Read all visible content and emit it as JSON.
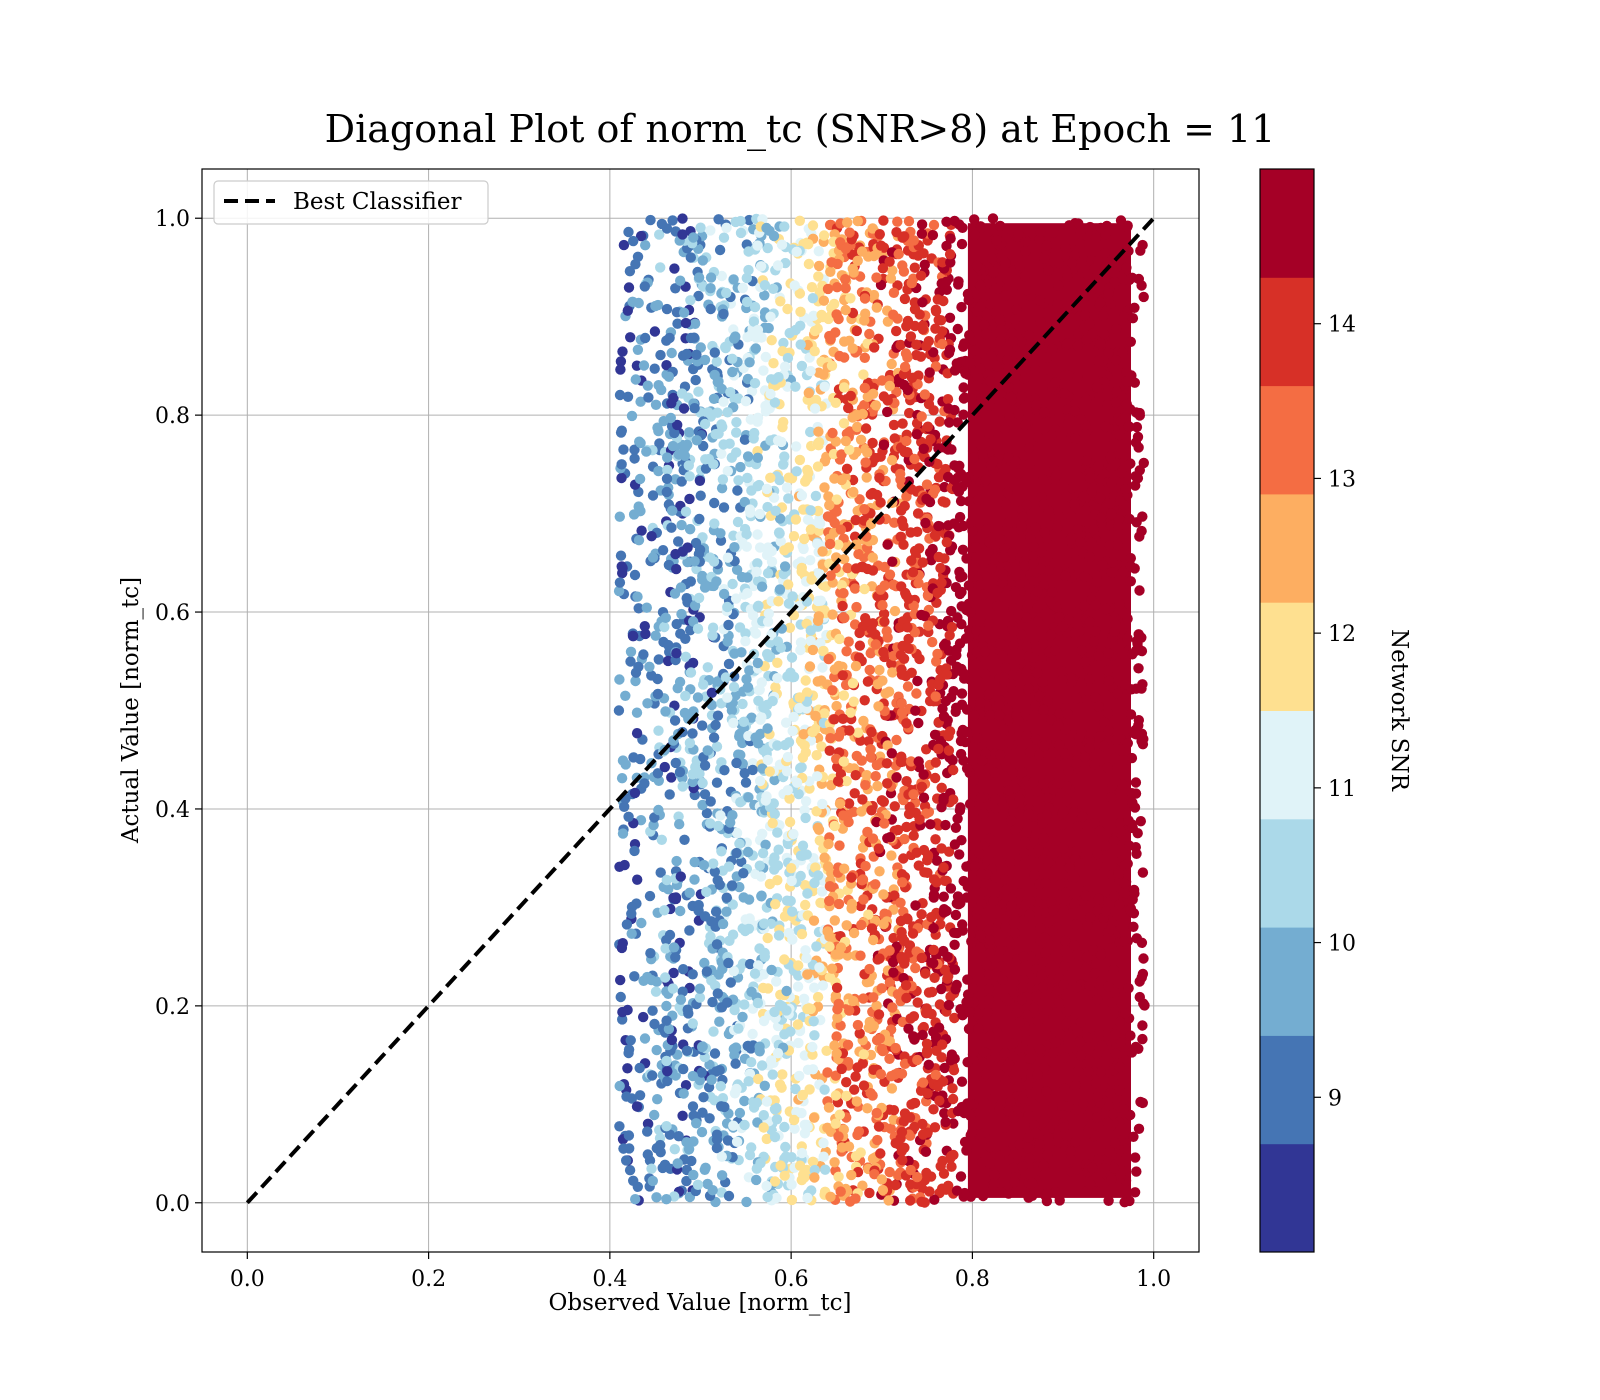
{
  "chart_data": {
    "type": "scatter",
    "title": "Diagonal Plot of norm_tc (SNR>8) at Epoch = 11",
    "xlabel": "Observed Value [norm_tc]",
    "ylabel": "Actual Value [norm_tc]",
    "xlim": [
      -0.05,
      1.05
    ],
    "ylim": [
      -0.05,
      1.05
    ],
    "x_ticks": [
      "0.0",
      "0.2",
      "0.4",
      "0.6",
      "0.8",
      "1.0"
    ],
    "y_ticks": [
      "0.0",
      "0.2",
      "0.4",
      "0.6",
      "0.8",
      "1.0"
    ],
    "grid": true,
    "legend": {
      "placement": "upper-left",
      "entries": [
        {
          "label": "Best Classifier",
          "style": "dashed",
          "color": "#000000"
        }
      ]
    },
    "reference_line": {
      "name": "Best Classifier",
      "x": [
        0.0,
        1.0
      ],
      "y": [
        0.0,
        1.0
      ]
    },
    "colorbar": {
      "label": "Network SNR",
      "range": [
        8,
        15
      ],
      "tick_labels": [
        "9",
        "10",
        "11",
        "12",
        "13",
        "14"
      ],
      "tick_values": [
        9,
        10,
        11,
        12,
        13,
        14
      ],
      "bands": [
        {
          "from": 8.0,
          "to": 8.7,
          "color": "#313695"
        },
        {
          "from": 8.7,
          "to": 9.4,
          "color": "#4575b4"
        },
        {
          "from": 9.4,
          "to": 10.1,
          "color": "#74add1"
        },
        {
          "from": 10.1,
          "to": 10.8,
          "color": "#abd9e9"
        },
        {
          "from": 10.8,
          "to": 11.5,
          "color": "#e0f3f8"
        },
        {
          "from": 11.5,
          "to": 12.2,
          "color": "#fee090"
        },
        {
          "from": 12.2,
          "to": 12.9,
          "color": "#fdae61"
        },
        {
          "from": 12.9,
          "to": 13.6,
          "color": "#f46d43"
        },
        {
          "from": 13.6,
          "to": 14.3,
          "color": "#d73027"
        },
        {
          "from": 14.3,
          "to": 15.0,
          "color": "#a50026"
        }
      ]
    },
    "scatter_summary": {
      "x_range": [
        0.41,
        1.0
      ],
      "y_range": [
        0.0,
        1.0
      ],
      "bins": [
        {
          "x_from": 0.41,
          "x_to": 0.46,
          "dominant_snr": [
            8.0,
            10.5
          ]
        },
        {
          "x_from": 0.46,
          "x_to": 0.56,
          "dominant_snr": [
            8.0,
            11.5
          ]
        },
        {
          "x_from": 0.56,
          "x_to": 0.64,
          "dominant_snr": [
            9.5,
            12.8
          ]
        },
        {
          "x_from": 0.64,
          "x_to": 0.72,
          "dominant_snr": [
            11.5,
            14.8
          ]
        },
        {
          "x_from": 0.72,
          "x_to": 0.78,
          "dominant_snr": [
            13.0,
            15.0
          ]
        },
        {
          "x_from": 0.78,
          "x_to": 0.99,
          "dominant_snr": [
            14.3,
            15.0
          ]
        }
      ],
      "outliers": [
        {
          "x": 0.415,
          "y": 0.765
        },
        {
          "x": 0.413,
          "y": 0.75
        },
        {
          "x": 0.41,
          "y": 0.5
        },
        {
          "x": 0.412,
          "y": 0.209
        },
        {
          "x": 0.415,
          "y": 0.055
        },
        {
          "x": 0.418,
          "y": 0.043
        }
      ]
    }
  }
}
